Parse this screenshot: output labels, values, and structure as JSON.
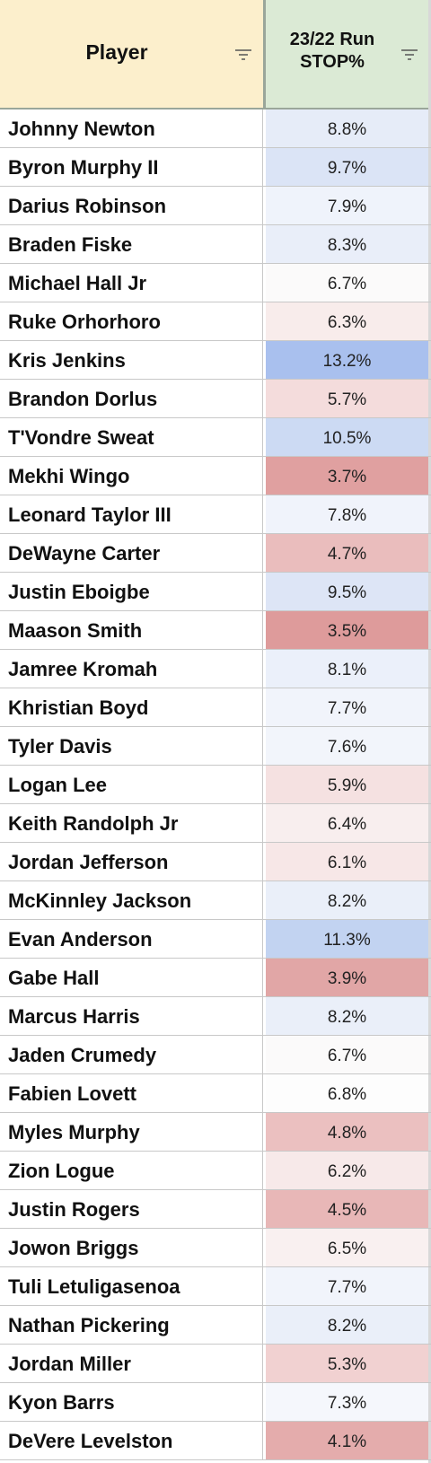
{
  "table": {
    "headers": [
      "Player",
      "23/22 Run STOP%"
    ],
    "header_colors": [
      "#fcefcc",
      "#dbead5"
    ],
    "rows": [
      [
        "Johnny Newton",
        "8.8%"
      ],
      [
        "Byron Murphy II",
        "9.7%"
      ],
      [
        "Darius Robinson",
        "7.9%"
      ],
      [
        "Braden Fiske",
        "8.3%"
      ],
      [
        "Michael Hall Jr",
        "6.7%"
      ],
      [
        "Ruke Orhorhoro",
        "6.3%"
      ],
      [
        "Kris Jenkins",
        "13.2%"
      ],
      [
        "Brandon Dorlus",
        "5.7%"
      ],
      [
        "T'Vondre Sweat",
        "10.5%"
      ],
      [
        "Mekhi Wingo",
        "3.7%"
      ],
      [
        "Leonard Taylor III",
        "7.8%"
      ],
      [
        "DeWayne Carter",
        "4.7%"
      ],
      [
        "Justin Eboigbe",
        "9.5%"
      ],
      [
        "Maason Smith",
        "3.5%"
      ],
      [
        "Jamree Kromah",
        "8.1%"
      ],
      [
        "Khristian Boyd",
        "7.7%"
      ],
      [
        "Tyler Davis",
        "7.6%"
      ],
      [
        "Logan Lee",
        "5.9%"
      ],
      [
        "Keith Randolph Jr",
        "6.4%"
      ],
      [
        "Jordan Jefferson",
        "6.1%"
      ],
      [
        "McKinnley Jackson",
        "8.2%"
      ],
      [
        "Evan Anderson",
        "11.3%"
      ],
      [
        "Gabe Hall",
        "3.9%"
      ],
      [
        "Marcus Harris",
        "8.2%"
      ],
      [
        "Jaden Crumedy",
        "6.7%"
      ],
      [
        "Fabien Lovett",
        "6.8%"
      ],
      [
        "Myles Murphy",
        "4.8%"
      ],
      [
        "Zion Logue",
        "6.2%"
      ],
      [
        "Justin Rogers",
        "4.5%"
      ],
      [
        "Jowon Briggs",
        "6.5%"
      ],
      [
        "Tuli Letuligasenoa",
        "7.7%"
      ],
      [
        "Nathan Pickering",
        "8.2%"
      ],
      [
        "Jordan Miller",
        "5.3%"
      ],
      [
        "Kyon Barrs",
        "7.3%"
      ],
      [
        "DeVere Levelston",
        "4.1%"
      ]
    ],
    "cell_colors": [
      "#e6ecf8",
      "#dbe4f6",
      "#eff3fb",
      "#e9eef9",
      "#fbfafa",
      "#f8eceb",
      "#a9c0ee",
      "#f4dcdc",
      "#ccdaf3",
      "#e0a0a0",
      "#f0f3fb",
      "#eabdbd",
      "#dde5f6",
      "#de9b9b",
      "#ebf0fa",
      "#f1f4fb",
      "#f2f5fb",
      "#f5e1e1",
      "#f8eeee",
      "#f7e7e7",
      "#eaeff9",
      "#c2d3f1",
      "#e1a6a6",
      "#eaeff9",
      "#fbfafa",
      "#fdfdfd",
      "#ebc0c0",
      "#f7e9e9",
      "#e8b7b7",
      "#f9f0f0",
      "#f1f4fb",
      "#eaeff9",
      "#f1d1d1",
      "#f5f7fc",
      "#e4acac"
    ]
  }
}
